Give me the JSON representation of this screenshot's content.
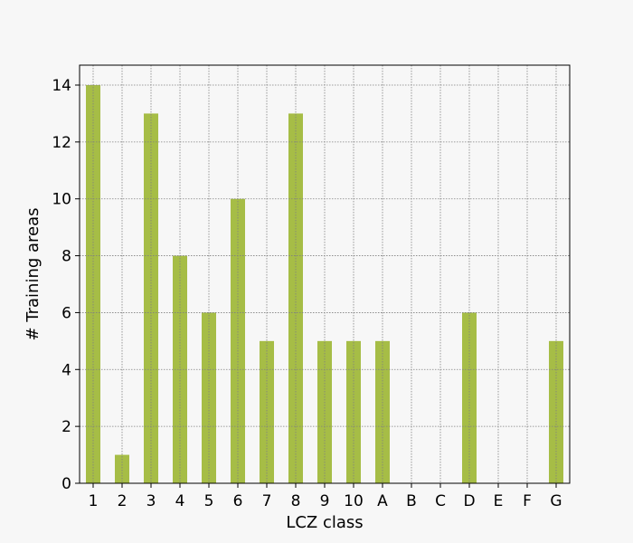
{
  "chart_data": {
    "type": "bar",
    "categories": [
      "1",
      "2",
      "3",
      "4",
      "5",
      "6",
      "7",
      "8",
      "9",
      "10",
      "A",
      "B",
      "C",
      "D",
      "E",
      "F",
      "G"
    ],
    "values": [
      14,
      1,
      13,
      8,
      6,
      10,
      5,
      13,
      5,
      5,
      5,
      0,
      0,
      6,
      0,
      0,
      5
    ],
    "title": "",
    "xlabel": "LCZ class",
    "ylabel": "# Training areas",
    "ylim": [
      0,
      14.7
    ],
    "yticks": [
      0,
      2,
      4,
      6,
      8,
      10,
      12,
      14
    ],
    "grid": true,
    "bar_color": "#a6bd46",
    "background_color": "#f7f7f7"
  }
}
